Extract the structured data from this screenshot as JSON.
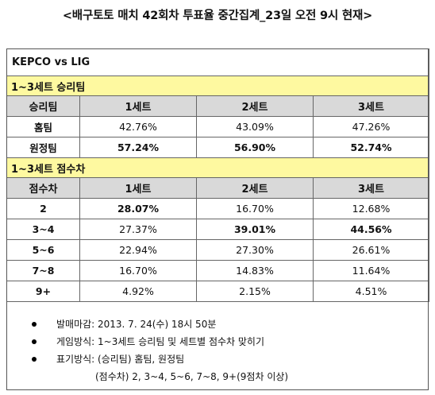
{
  "title": "<배구토토 매치 42회차 투표율 중간집계_23일 오전 9시 현재>",
  "match": "KEPCO vs LIG",
  "win_section": {
    "title": "1~3세트 승리팀",
    "headers": [
      "승리팀",
      "1세트",
      "2세트",
      "3세트"
    ],
    "rows": [
      {
        "label": "홈팀",
        "values": [
          "42.76%",
          "43.09%",
          "47.26%"
        ]
      },
      {
        "label": "원정팀",
        "values": [
          "57.24%",
          "56.90%",
          "52.74%"
        ]
      }
    ]
  },
  "diff_section": {
    "title": "1~3세트 점수차",
    "headers": [
      "점수차",
      "1세트",
      "2세트",
      "3세트"
    ],
    "rows": [
      {
        "label": "2",
        "values": [
          "28.07%",
          "16.70%",
          "12.68%"
        ]
      },
      {
        "label": "3~4",
        "values": [
          "27.37%",
          "39.01%",
          "44.56%"
        ]
      },
      {
        "label": "5~6",
        "values": [
          "22.94%",
          "27.30%",
          "26.61%"
        ]
      },
      {
        "label": "7~8",
        "values": [
          "16.70%",
          "14.83%",
          "11.64%"
        ]
      },
      {
        "label": "9+",
        "values": [
          "4.92%",
          "2.15%",
          "4.51%"
        ]
      }
    ]
  },
  "notes": [
    "발매마감: 2013. 7. 24(수) 18시 50분",
    "게임방식: 1~3세트 승리팀 및 세트별 점수차 맞히기",
    "표기방식: (승리팀) 홈팀, 원정팀"
  ],
  "notes_continuation": "(점수차) 2, 3~4, 5~6, 7~8, 9+(9점차 이상)"
}
